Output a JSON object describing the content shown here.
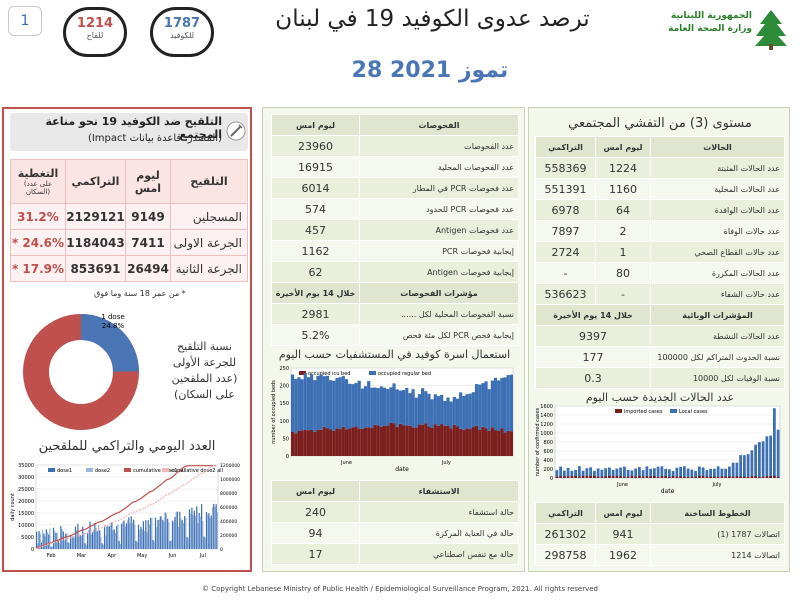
{
  "header": {
    "page_number": "1",
    "hotline_covid": {
      "number": "1787",
      "label": "للكوفيد"
    },
    "hotline_vaccine": {
      "number": "1214",
      "label": "للقاح"
    },
    "title": "ترصد عدوى الكوفيد 19 في لبنان",
    "date": "28 تموز 2021",
    "ministry_line1": "الجمهورية اللبنانية",
    "ministry_line2": "وزارة الصحة العامة"
  },
  "vaccination": {
    "title": "التلقيح ضد الكوفيد 19  نحو مناعة المجتمع",
    "subtitle": "(المصدر: قاعدة بيانات Impact)",
    "headers": {
      "name": "التلقيح",
      "daily": "ليوم امس",
      "cumulative": "التراكمي",
      "coverage": "التغطية",
      "coverage_note": "(على عدد السكان)"
    },
    "rows": [
      {
        "label": "المسجلين",
        "daily": "9149",
        "cumulative": "2129121",
        "coverage": "31.2%"
      },
      {
        "label": "الجرعة الاولى",
        "daily": "7411",
        "cumulative": "1184043",
        "coverage": "24.6%",
        "star": "*"
      },
      {
        "label": "الجرعة الثانية",
        "daily": "26494",
        "cumulative": "853691",
        "coverage": "17.9%",
        "star": "*"
      }
    ],
    "footnote": "* من عمر 18 سنة وما فوق",
    "donut_label": "1 dose",
    "donut_value": "24.8%",
    "donut_fraction": 0.248,
    "donut_caption": [
      "نسبة التلقيح",
      "للجرعة الأولى",
      "(عدد الملقحين",
      "على السكان)"
    ],
    "chart_title": "العدد اليومي والتراكمي للملقحين"
  },
  "tests": {
    "headers": {
      "label": "الفحوصات",
      "value": "ليوم امس"
    },
    "rows": [
      {
        "label": "عدد الفحوصات",
        "value": "23960"
      },
      {
        "label": "عدد الفحوصات المحلية",
        "value": "16915"
      },
      {
        "label": "عدد فحوصات PCR في المطار",
        "value": "6014"
      },
      {
        "label": "عدد فحوصات PCR للحدود",
        "value": "574"
      },
      {
        "label": "عدد فحوصات Antigen",
        "value": "457"
      },
      {
        "label": "إيجابية فحوصات  PCR",
        "value": "1162"
      },
      {
        "label": "إيجابية فحوصات Antigen",
        "value": "62"
      }
    ],
    "indicators_header": {
      "label": "مؤشرات الفحوصات",
      "value": "خلال 14 يوم الأخيرة"
    },
    "indicators": [
      {
        "label": "نسبة الفحوصات  المحلية لكل ......",
        "value": "2981"
      },
      {
        "label": "إيجابية فحص PCR لكل مئة فحص",
        "value": "5.2%"
      }
    ]
  },
  "hospital_chart": {
    "title": "استعمال اسرة كوفيد في المستشفيات حسب اليوم",
    "legend": [
      "occupied icu bed",
      "occupied regular bed"
    ],
    "colors": [
      "#7a1e1e",
      "#3d6fb5"
    ],
    "xlabel": "date",
    "ylabel": "number of occupied beds",
    "yticks": [
      "0",
      "50",
      "100",
      "150",
      "200",
      "250"
    ],
    "xticks": [
      "June",
      "July"
    ]
  },
  "recovery": {
    "headers": {
      "label": "الاستشفاء",
      "value": "ليوم امس"
    },
    "rows": [
      {
        "label": "حالة استشفاء",
        "value": "240"
      },
      {
        "label": "حالة في العناية المركزة",
        "value": "94"
      },
      {
        "label": "حالة مع تنفس اصطناعي",
        "value": "17"
      }
    ]
  },
  "community": {
    "title": "مستوى (3) من التفشي المجتمعي",
    "headers": {
      "label": "الحالات",
      "daily": "ليوم امس",
      "cumulative": "التراكمي"
    },
    "rows": [
      {
        "label": "عدد الحالات المثبتة",
        "daily": "1224",
        "cumulative": "558369"
      },
      {
        "label": "عدد الحالات المحلية",
        "daily": "1160",
        "cumulative": "551391"
      },
      {
        "label": "عدد الحالات الوافدة",
        "daily": "64",
        "cumulative": "6978"
      },
      {
        "label": "عدد حالات الوفاة",
        "daily": "2",
        "cumulative": "7897"
      },
      {
        "label": "عدد حالات القطاع الصحي",
        "daily": "1",
        "cumulative": "2724"
      },
      {
        "label": "عدد الحالات المكررة",
        "daily": "80",
        "cumulative": "-"
      },
      {
        "label": "عدد حالات الشفاء",
        "daily": "-",
        "cumulative": "536623"
      }
    ],
    "indicators_header": {
      "label": "المؤشرات الوبائية",
      "value": "خلال 14 يوم الأخيرة"
    },
    "indicators": [
      {
        "label": "عدد الحالات النشطة",
        "value": "9397"
      },
      {
        "label": "نسبة الحدوث المتراكم لكل 100000",
        "value": "177"
      },
      {
        "label": "نسبة الوفيات لكل 10000",
        "value": "0.3"
      }
    ]
  },
  "cases_chart": {
    "title": "عدد الحالات الجديدة حسب اليوم",
    "legend": [
      "imported cases",
      "Local cases"
    ],
    "colors": [
      "#7a1e1e",
      "#3d6fb5"
    ],
    "xlabel": "date",
    "ylabel": "number of confirmed cases",
    "yticks": [
      "0",
      "200",
      "400",
      "600",
      "800",
      "1000",
      "1200",
      "1400",
      "1600"
    ],
    "xticks": [
      "June",
      "July"
    ]
  },
  "hotlines": {
    "headers": {
      "label": "الخطوط الساخنة",
      "daily": "ليوم امس",
      "cumulative": "التراكمي"
    },
    "rows": [
      {
        "label": "اتصالات 1787 (1)",
        "daily": "941",
        "cumulative": "261302"
      },
      {
        "label": "اتصالات 1214",
        "daily": "1962",
        "cumulative": "298758"
      }
    ]
  },
  "vacc_chart": {
    "legend": [
      "dose1",
      "dose2",
      "cumulative dose1 all",
      "cumulative dose2 all"
    ],
    "colors": [
      "#3d6fb5",
      "#9db8dc",
      "#c0504d",
      "#f2b8b5"
    ],
    "ylabel": "daily count",
    "yticks": [
      "0",
      "5000",
      "10000",
      "15000",
      "20000",
      "25000",
      "30000",
      "35000"
    ],
    "y2ticks": [
      "0",
      "200000",
      "400000",
      "600000",
      "800000",
      "1000000",
      "1200000"
    ],
    "xticks": [
      "Feb",
      "Mar",
      "Apr",
      "May",
      "Jun",
      "Jul"
    ]
  },
  "footer": "© Copyright Lebanese Ministry of Public Health / Epidemiological Surveillance Program, 2021. All rights reserved",
  "colors": {
    "accent_red": "#c0504d",
    "accent_blue": "#4a76b5",
    "panel_bg": "#f4f7ec"
  }
}
